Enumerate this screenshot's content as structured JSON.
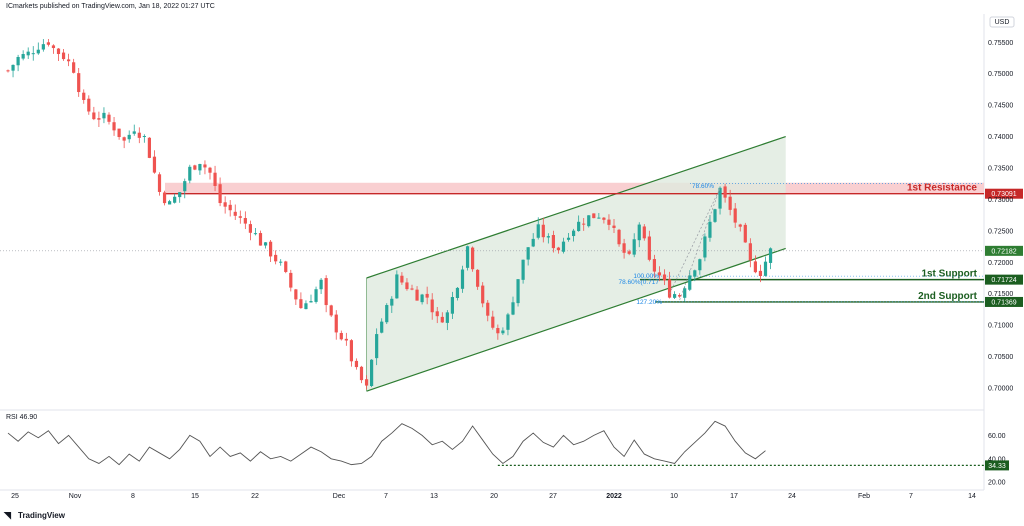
{
  "header": {
    "published": "ICmarkets published on TradingView.com, Jan 18, 2022 01:27 UTC"
  },
  "footer": {
    "brand": "TradingView",
    "logo_icon": "tradingview-logo-icon"
  },
  "colors": {
    "up": "#26a69a",
    "down": "#ef5350",
    "channel_line": "#2e7d32",
    "channel_fill": "#dfeadf",
    "resistance": "#c62828",
    "resistance_zone": "#f8c7c9",
    "support": "#1b5e20",
    "fib": "#1e88e5",
    "rsi_line": "#555555"
  },
  "chart_data": [
    {
      "type": "candlestick",
      "title": "",
      "currency": "USD",
      "y_ticks": [
        "0.75500",
        "0.75000",
        "0.74500",
        "0.74000",
        "0.73500",
        "0.73000",
        "0.72500",
        "0.72000",
        "0.71500",
        "0.71000",
        "0.70500",
        "0.70000"
      ],
      "y_tick_values": [
        0.755,
        0.75,
        0.745,
        0.74,
        0.735,
        0.73,
        0.725,
        0.72,
        0.715,
        0.71,
        0.705,
        0.7
      ],
      "ylim": [
        0.6965,
        0.7595
      ],
      "x_ticks": [
        "25",
        "Nov",
        "8",
        "15",
        "22",
        "Dec",
        "7",
        "13",
        "20",
        "27",
        "2022",
        "10",
        "17",
        "24",
        "Feb",
        "7",
        "14"
      ],
      "x_tick_bold": "2022",
      "last_price": "0.72182",
      "last_price_value": 0.72182,
      "close_path": [
        [
          0,
          0.7505
        ],
        [
          2,
          0.7525
        ],
        [
          4,
          0.7532
        ],
        [
          6,
          0.7545
        ],
        [
          8,
          0.7552
        ],
        [
          9,
          0.754
        ],
        [
          11,
          0.7528
        ],
        [
          13,
          0.7508
        ],
        [
          15,
          0.745
        ],
        [
          17,
          0.7432
        ],
        [
          19,
          0.743
        ],
        [
          21,
          0.7415
        ],
        [
          23,
          0.7392
        ],
        [
          25,
          0.7415
        ],
        [
          27,
          0.7398
        ],
        [
          28,
          0.7372
        ],
        [
          30,
          0.7312
        ],
        [
          32,
          0.7292
        ],
        [
          34,
          0.7312
        ],
        [
          36,
          0.7348
        ],
        [
          38,
          0.7362
        ],
        [
          40,
          0.7342
        ],
        [
          42,
          0.7295
        ],
        [
          44,
          0.7282
        ],
        [
          46,
          0.7268
        ],
        [
          48,
          0.7255
        ],
        [
          50,
          0.7232
        ],
        [
          52,
          0.7215
        ],
        [
          54,
          0.7195
        ],
        [
          56,
          0.716
        ],
        [
          58,
          0.7128
        ],
        [
          60,
          0.7145
        ],
        [
          62,
          0.7168
        ],
        [
          63,
          0.7125
        ],
        [
          65,
          0.7095
        ],
        [
          67,
          0.7068
        ],
        [
          69,
          0.7025
        ],
        [
          71,
          0.6998
        ],
        [
          73,
          0.7088
        ],
        [
          75,
          0.7125
        ],
        [
          77,
          0.7175
        ],
        [
          79,
          0.7162
        ],
        [
          81,
          0.7148
        ],
        [
          83,
          0.7145
        ],
        [
          85,
          0.7108
        ],
        [
          87,
          0.7118
        ],
        [
          89,
          0.7168
        ],
        [
          91,
          0.7225
        ],
        [
          93,
          0.7168
        ],
        [
          95,
          0.7108
        ],
        [
          97,
          0.7085
        ],
        [
          99,
          0.7112
        ],
        [
          101,
          0.7175
        ],
        [
          103,
          0.7225
        ],
        [
          105,
          0.7252
        ],
        [
          107,
          0.7235
        ],
        [
          109,
          0.7222
        ],
        [
          111,
          0.7248
        ],
        [
          113,
          0.7262
        ],
        [
          115,
          0.7272
        ],
        [
          117,
          0.7276
        ],
        [
          119,
          0.7268
        ],
        [
          121,
          0.7225
        ],
        [
          123,
          0.7205
        ],
        [
          125,
          0.7262
        ],
        [
          127,
          0.7198
        ],
        [
          129,
          0.7178
        ],
        [
          131,
          0.7152
        ],
        [
          133,
          0.7148
        ],
        [
          135,
          0.7182
        ],
        [
          137,
          0.7208
        ],
        [
          139,
          0.7262
        ],
        [
          141,
          0.7316
        ],
        [
          143,
          0.7282
        ],
        [
          145,
          0.7248
        ],
        [
          147,
          0.7198
        ],
        [
          149,
          0.7185
        ],
        [
          151,
          0.7218
        ]
      ],
      "ascending_channel": {
        "upper": [
          [
            71,
            0.7175
          ],
          [
            154,
            0.74
          ]
        ],
        "lower": [
          [
            71,
            0.6995
          ],
          [
            154,
            0.7222
          ]
        ]
      },
      "levels": [
        {
          "name": "1st Resistance",
          "value": 0.73091,
          "label": "0.73091",
          "zone": [
            0.73091,
            0.73265
          ]
        },
        {
          "name": "1st Support",
          "value": 0.71724,
          "label": "0.71724"
        },
        {
          "name": "2nd Support",
          "value": 0.71369,
          "label": "0.71369"
        }
      ],
      "fib_labels": [
        {
          "text": "78.60%",
          "price": 0.7321
        },
        {
          "text": "100.00%",
          "price": 0.7178
        },
        {
          "text": "78.60%(0.717",
          "price": 0.7169
        },
        {
          "text": "127.20%",
          "price": 0.7137
        }
      ]
    },
    {
      "type": "line",
      "title": "RSI",
      "value_label": "46.90",
      "y_ticks": [
        "60.00",
        "40.00",
        "20.00"
      ],
      "y_tick_values": [
        60,
        40,
        20
      ],
      "ylim": [
        15,
        80
      ],
      "threshold": {
        "value": 34.33,
        "label": "34.33"
      },
      "points": [
        [
          0,
          62
        ],
        [
          2,
          55
        ],
        [
          4,
          63
        ],
        [
          6,
          58
        ],
        [
          8,
          64
        ],
        [
          10,
          53
        ],
        [
          12,
          60
        ],
        [
          14,
          50
        ],
        [
          16,
          40
        ],
        [
          18,
          36
        ],
        [
          20,
          42
        ],
        [
          22,
          35
        ],
        [
          24,
          44
        ],
        [
          26,
          38
        ],
        [
          28,
          50
        ],
        [
          30,
          45
        ],
        [
          32,
          40
        ],
        [
          34,
          48
        ],
        [
          36,
          60
        ],
        [
          38,
          55
        ],
        [
          40,
          42
        ],
        [
          42,
          50
        ],
        [
          44,
          42
        ],
        [
          46,
          45
        ],
        [
          48,
          38
        ],
        [
          50,
          46
        ],
        [
          52,
          40
        ],
        [
          54,
          42
        ],
        [
          56,
          38
        ],
        [
          58,
          44
        ],
        [
          60,
          50
        ],
        [
          62,
          46
        ],
        [
          64,
          40
        ],
        [
          66,
          38
        ],
        [
          68,
          35
        ],
        [
          70,
          36
        ],
        [
          72,
          42
        ],
        [
          74,
          55
        ],
        [
          76,
          62
        ],
        [
          78,
          70
        ],
        [
          80,
          66
        ],
        [
          82,
          60
        ],
        [
          84,
          52
        ],
        [
          86,
          55
        ],
        [
          88,
          48
        ],
        [
          90,
          55
        ],
        [
          92,
          68
        ],
        [
          94,
          56
        ],
        [
          96,
          44
        ],
        [
          98,
          36
        ],
        [
          100,
          42
        ],
        [
          102,
          55
        ],
        [
          104,
          62
        ],
        [
          106,
          54
        ],
        [
          108,
          50
        ],
        [
          110,
          60
        ],
        [
          112,
          52
        ],
        [
          114,
          55
        ],
        [
          116,
          60
        ],
        [
          118,
          64
        ],
        [
          120,
          50
        ],
        [
          122,
          42
        ],
        [
          124,
          56
        ],
        [
          126,
          44
        ],
        [
          128,
          40
        ],
        [
          130,
          38
        ],
        [
          132,
          36
        ],
        [
          134,
          46
        ],
        [
          136,
          54
        ],
        [
          138,
          62
        ],
        [
          140,
          72
        ],
        [
          142,
          68
        ],
        [
          144,
          55
        ],
        [
          146,
          45
        ],
        [
          148,
          40
        ],
        [
          150,
          46.9
        ]
      ]
    }
  ]
}
